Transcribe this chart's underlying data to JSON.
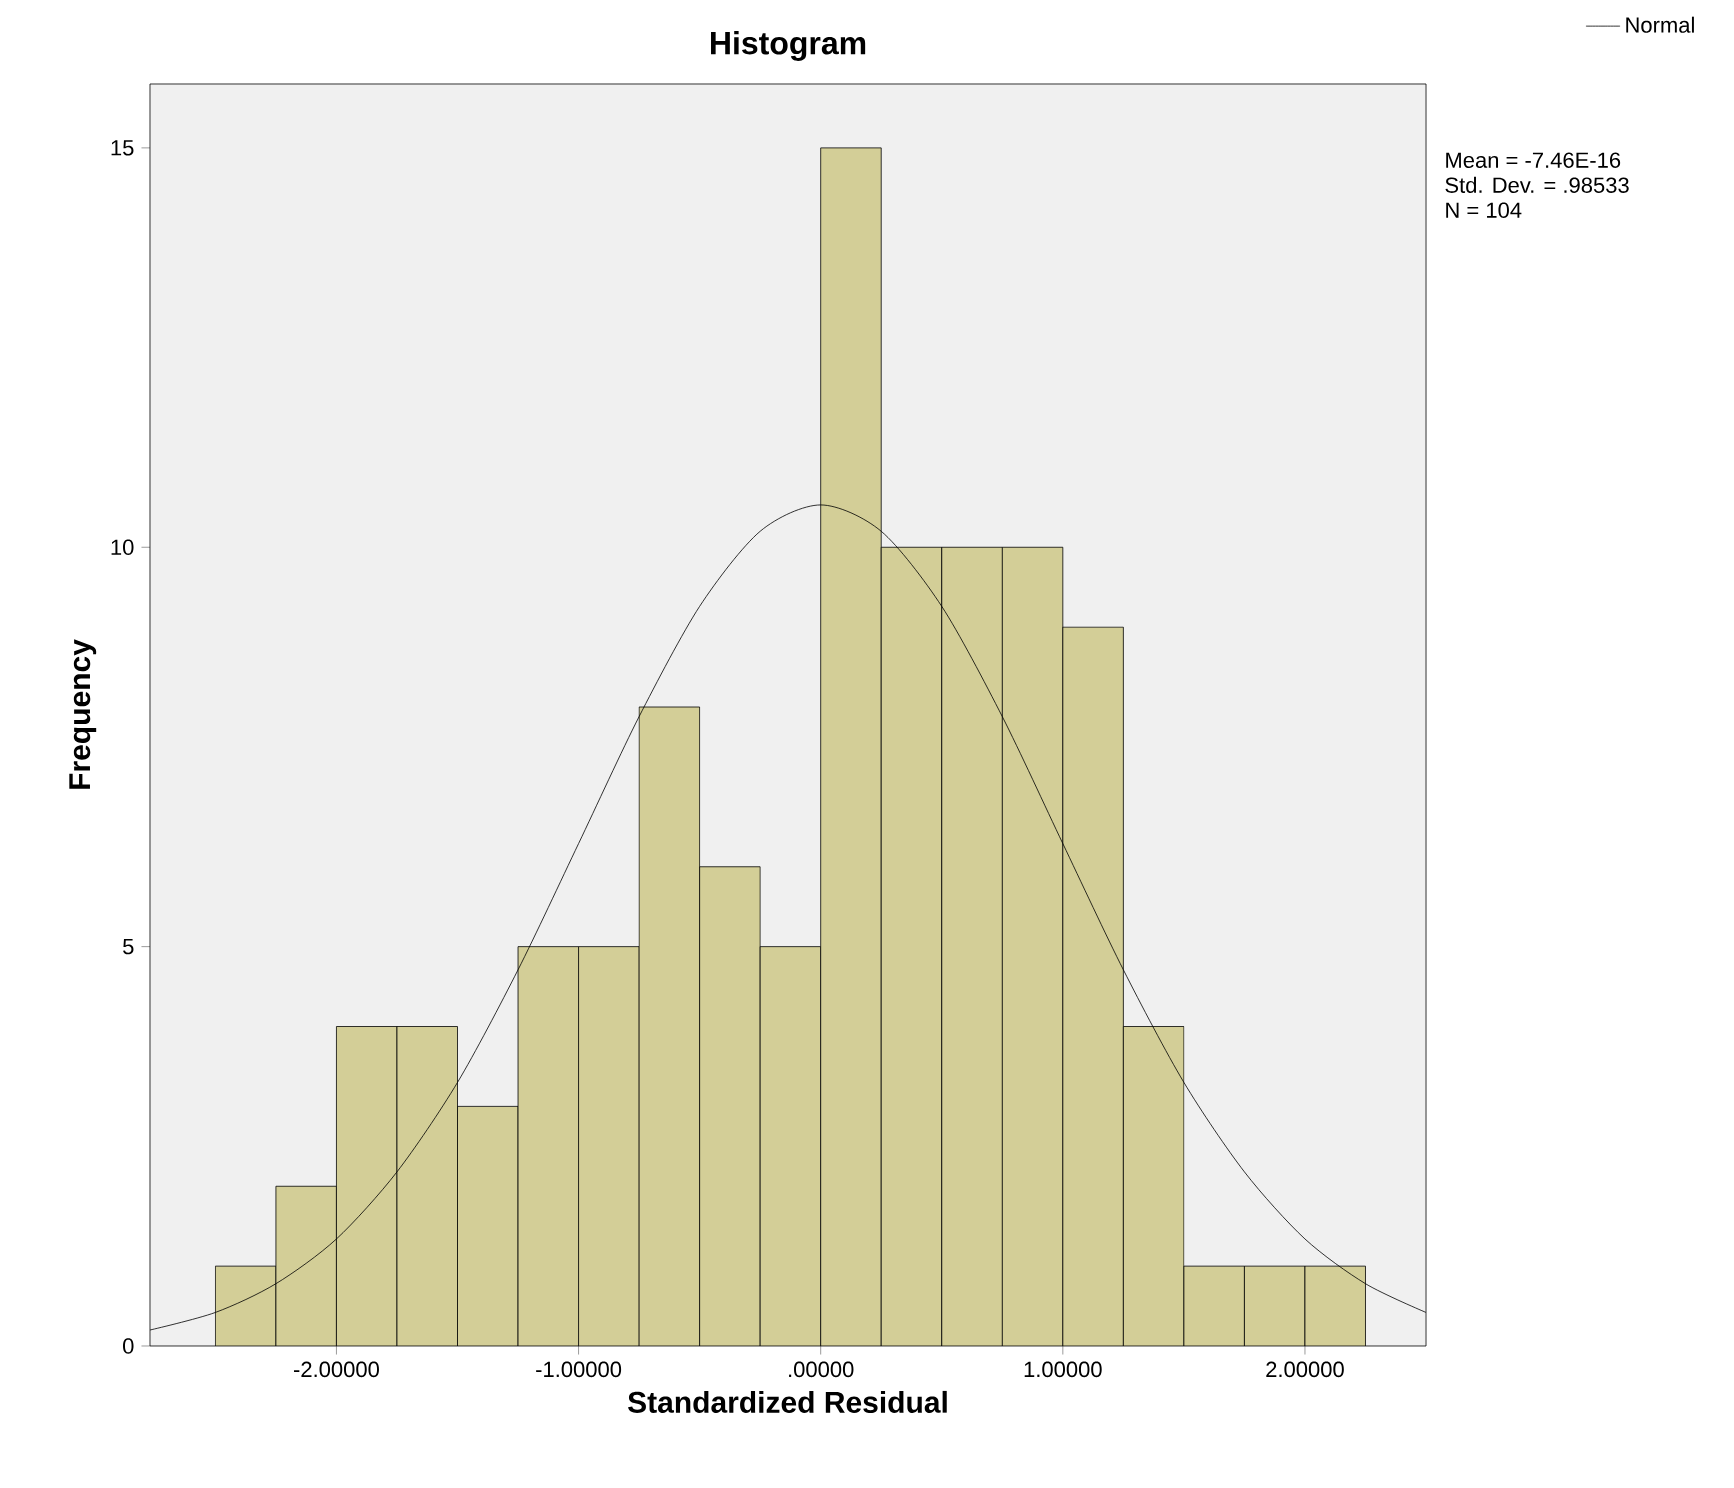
{
  "chart_data": {
    "type": "histogram",
    "title": "Histogram",
    "xlabel": "Standardized Residual",
    "ylabel": "Frequency",
    "bins": [
      -2.5,
      -2.25,
      -2.0,
      -1.75,
      -1.5,
      -1.25,
      -1.0,
      -0.75,
      -0.5,
      -0.25,
      0.0,
      0.25,
      0.5,
      0.75,
      1.0,
      1.25,
      1.5,
      1.75,
      2.0,
      2.25
    ],
    "values": [
      1,
      2,
      4,
      4,
      3,
      5,
      5,
      8,
      6,
      5,
      15,
      10,
      10,
      10,
      9,
      4,
      1,
      1,
      1
    ],
    "color": "#d3ce97",
    "series": [
      {
        "name": "Normal",
        "type": "line",
        "color": "#000000",
        "x": [
          -2.77,
          -2.5,
          -2.25,
          -2.0,
          -1.75,
          -1.5,
          -1.25,
          -1.0,
          -0.75,
          -0.5,
          -0.25,
          0.0,
          0.25,
          0.5,
          0.75,
          1.0,
          1.25,
          1.5,
          1.75,
          2.0,
          2.25,
          2.5
        ],
        "values": [
          0.2,
          0.42,
          0.78,
          1.34,
          2.18,
          3.3,
          4.71,
          6.29,
          7.88,
          9.26,
          10.2,
          10.53,
          10.2,
          9.26,
          7.88,
          6.29,
          4.71,
          3.3,
          2.18,
          1.34,
          0.78,
          0.42
        ]
      }
    ],
    "xlim": [
      -2.77,
      2.5
    ],
    "ylim": [
      0,
      15.8
    ],
    "xticks": [
      {
        "value": -2,
        "label": "-2.00000"
      },
      {
        "value": -1,
        "label": "-1.00000"
      },
      {
        "value": 0,
        "label": ".00000"
      },
      {
        "value": 1,
        "label": "1.00000"
      },
      {
        "value": 2,
        "label": "2.00000"
      }
    ],
    "yticks": [
      0,
      5,
      10,
      15
    ],
    "legend": "top right",
    "annotations": [
      "Mean = -7.46E-16",
      "Std. Dev. = .98533",
      "N = 104"
    ]
  }
}
